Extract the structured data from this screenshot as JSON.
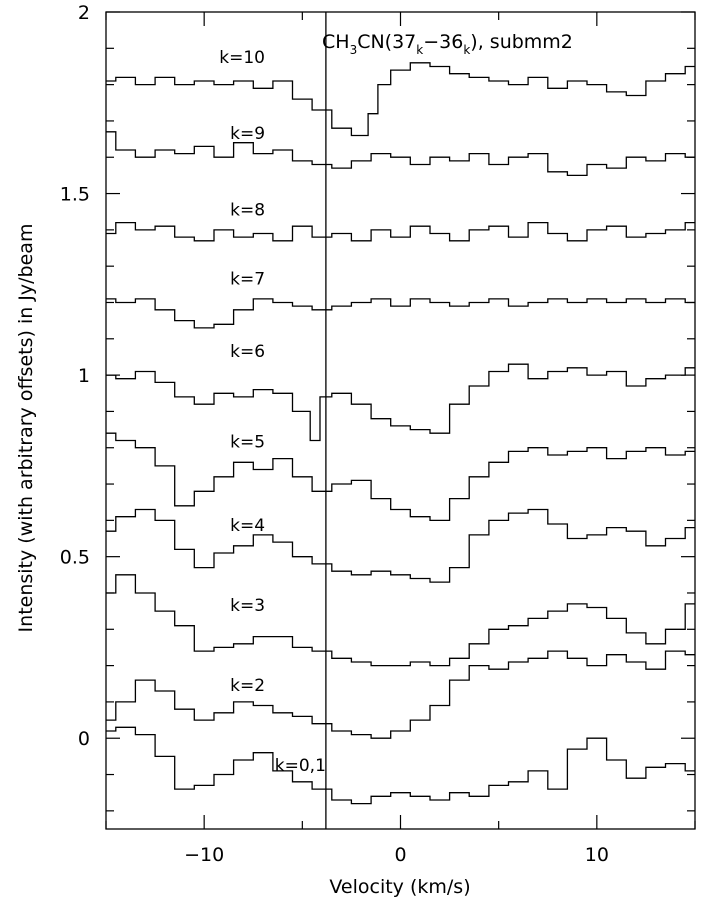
{
  "chart_data": {
    "type": "line",
    "title": "CH3CN(37k−36k), submm2",
    "title_parts": {
      "a": "CH",
      "b": "3",
      "c": "CN(37",
      "d": "k",
      "e": "−36",
      "f": "k",
      "g": "), submm2"
    },
    "xlabel": "Velocity (km/s)",
    "ylabel": "Intensity (with arbitrary offsets) in Jy/beam",
    "xlim": [
      -15,
      15
    ],
    "ylim": [
      -0.25,
      2.0
    ],
    "x_ticks": [
      -10,
      0,
      10
    ],
    "x_tick_labels": [
      "−10",
      "0",
      "10"
    ],
    "y_ticks": [
      0,
      0.5,
      1,
      1.5,
      2
    ],
    "y_tick_labels": [
      "0",
      "0.5",
      "1",
      "1.5",
      "2"
    ],
    "reference_velocity": -3.8,
    "grid": false,
    "series": [
      {
        "name": "k=10",
        "x": [
          -15,
          -14,
          -13,
          -12,
          -11,
          -10,
          -9,
          -8,
          -7,
          -6,
          -5,
          -4,
          -3,
          -2,
          -1.3,
          -1,
          0,
          1,
          2,
          3,
          4,
          5,
          6,
          7,
          8,
          9,
          10,
          11,
          12,
          13,
          14,
          15
        ],
        "y": [
          1.81,
          1.82,
          1.8,
          1.82,
          1.8,
          1.81,
          1.8,
          1.81,
          1.79,
          1.81,
          1.76,
          1.73,
          1.68,
          1.66,
          1.72,
          1.8,
          1.84,
          1.86,
          1.85,
          1.83,
          1.82,
          1.81,
          1.8,
          1.82,
          1.79,
          1.81,
          1.8,
          1.78,
          1.77,
          1.81,
          1.83,
          1.85
        ]
      },
      {
        "name": "k=9",
        "x": [
          -15,
          -14,
          -13,
          -12,
          -11,
          -10,
          -9,
          -8,
          -7,
          -6,
          -5,
          -4,
          -3,
          -2,
          -1,
          0,
          1,
          2,
          3,
          4,
          5,
          6,
          7,
          8,
          9,
          10,
          11,
          12,
          13,
          14,
          15
        ],
        "y": [
          1.67,
          1.62,
          1.6,
          1.62,
          1.61,
          1.63,
          1.6,
          1.64,
          1.61,
          1.62,
          1.59,
          1.58,
          1.57,
          1.59,
          1.61,
          1.6,
          1.58,
          1.6,
          1.59,
          1.61,
          1.58,
          1.6,
          1.61,
          1.56,
          1.55,
          1.58,
          1.57,
          1.6,
          1.59,
          1.61,
          1.6
        ]
      },
      {
        "name": "k=8",
        "x": [
          -15,
          -14,
          -13,
          -12,
          -11,
          -10,
          -9,
          -8,
          -7,
          -6,
          -5,
          -4,
          -3,
          -2,
          -1,
          0,
          1,
          2,
          3,
          4,
          5,
          6,
          7,
          8,
          9,
          10,
          11,
          12,
          13,
          14,
          15
        ],
        "y": [
          1.39,
          1.42,
          1.4,
          1.41,
          1.38,
          1.37,
          1.4,
          1.38,
          1.39,
          1.37,
          1.41,
          1.38,
          1.39,
          1.37,
          1.4,
          1.38,
          1.41,
          1.39,
          1.37,
          1.4,
          1.41,
          1.38,
          1.42,
          1.39,
          1.37,
          1.4,
          1.41,
          1.38,
          1.39,
          1.4,
          1.42
        ]
      },
      {
        "name": "k=7",
        "x": [
          -15,
          -14,
          -13,
          -12,
          -11,
          -10,
          -9,
          -8,
          -7,
          -6,
          -5,
          -4,
          -3,
          -2,
          -1,
          0,
          1,
          2,
          3,
          4,
          5,
          6,
          7,
          8,
          9,
          10,
          11,
          12,
          13,
          14,
          15
        ],
        "y": [
          1.21,
          1.2,
          1.21,
          1.18,
          1.15,
          1.13,
          1.14,
          1.18,
          1.21,
          1.2,
          1.19,
          1.18,
          1.19,
          1.2,
          1.21,
          1.19,
          1.21,
          1.2,
          1.19,
          1.2,
          1.21,
          1.19,
          1.2,
          1.21,
          1.2,
          1.21,
          1.2,
          1.21,
          1.2,
          1.21,
          1.2
        ]
      },
      {
        "name": "k=6",
        "x": [
          -15,
          -14,
          -13,
          -12,
          -11,
          -10,
          -9,
          -8,
          -7,
          -6,
          -5,
          -4.2,
          -4,
          -3,
          -2,
          -1,
          0,
          1,
          2,
          3,
          4,
          5,
          6,
          7,
          8,
          9,
          10,
          11,
          12,
          13,
          14,
          15
        ],
        "y": [
          1.0,
          0.99,
          1.01,
          0.98,
          0.94,
          0.92,
          0.95,
          0.94,
          0.96,
          0.95,
          0.9,
          0.82,
          0.94,
          0.95,
          0.92,
          0.88,
          0.86,
          0.85,
          0.84,
          0.92,
          0.97,
          1.01,
          1.03,
          0.99,
          1.01,
          1.02,
          1.0,
          1.01,
          0.97,
          0.99,
          1.0,
          1.02
        ]
      },
      {
        "name": "k=5",
        "x": [
          -15,
          -14,
          -13,
          -12,
          -11,
          -10,
          -9,
          -8,
          -7,
          -6,
          -5,
          -4,
          -3,
          -2,
          -1,
          0,
          1,
          2,
          3,
          4,
          5,
          6,
          7,
          8,
          9,
          10,
          11,
          12,
          13,
          14,
          15
        ],
        "y": [
          0.84,
          0.82,
          0.8,
          0.75,
          0.64,
          0.68,
          0.72,
          0.76,
          0.74,
          0.77,
          0.72,
          0.68,
          0.7,
          0.71,
          0.66,
          0.63,
          0.61,
          0.6,
          0.66,
          0.72,
          0.76,
          0.79,
          0.8,
          0.78,
          0.79,
          0.8,
          0.77,
          0.79,
          0.8,
          0.78,
          0.79
        ]
      },
      {
        "name": "k=4",
        "x": [
          -15,
          -14,
          -13,
          -12,
          -11,
          -10,
          -9,
          -8,
          -7,
          -6,
          -5,
          -4,
          -3,
          -2,
          -1,
          0,
          1,
          2,
          3,
          4,
          5,
          6,
          7,
          8,
          9,
          10,
          11,
          12,
          13,
          14,
          15
        ],
        "y": [
          0.57,
          0.61,
          0.63,
          0.6,
          0.52,
          0.47,
          0.51,
          0.53,
          0.56,
          0.54,
          0.5,
          0.48,
          0.46,
          0.45,
          0.46,
          0.45,
          0.44,
          0.43,
          0.47,
          0.56,
          0.6,
          0.62,
          0.63,
          0.59,
          0.55,
          0.56,
          0.58,
          0.57,
          0.53,
          0.55,
          0.58
        ]
      },
      {
        "name": "k=3",
        "x": [
          -15,
          -14,
          -13,
          -12,
          -11,
          -10,
          -9,
          -8,
          -7,
          -6,
          -5,
          -4,
          -3,
          -2,
          -1,
          0,
          1,
          2,
          3,
          4,
          5,
          6,
          7,
          8,
          9,
          10,
          11,
          12,
          13,
          14,
          15
        ],
        "y": [
          0.4,
          0.45,
          0.4,
          0.35,
          0.31,
          0.24,
          0.25,
          0.26,
          0.28,
          0.28,
          0.25,
          0.24,
          0.22,
          0.21,
          0.2,
          0.2,
          0.21,
          0.2,
          0.22,
          0.26,
          0.3,
          0.31,
          0.33,
          0.35,
          0.37,
          0.36,
          0.33,
          0.29,
          0.26,
          0.3,
          0.37
        ]
      },
      {
        "name": "k=2",
        "x": [
          -15,
          -14,
          -13,
          -12,
          -11,
          -10,
          -9,
          -8,
          -7,
          -6,
          -5,
          -4,
          -3,
          -2,
          -1,
          0,
          1,
          2,
          3,
          4,
          5,
          6,
          7,
          8,
          9,
          10,
          11,
          12,
          13,
          14,
          15
        ],
        "y": [
          0.05,
          0.1,
          0.16,
          0.13,
          0.08,
          0.05,
          0.07,
          0.1,
          0.09,
          0.07,
          0.06,
          0.04,
          0.02,
          0.01,
          0.0,
          0.02,
          0.05,
          0.09,
          0.16,
          0.2,
          0.19,
          0.21,
          0.22,
          0.24,
          0.22,
          0.2,
          0.23,
          0.21,
          0.19,
          0.24,
          0.23
        ]
      },
      {
        "name": "k=0,1",
        "x": [
          -15,
          -14,
          -13,
          -12,
          -11,
          -10,
          -9,
          -8,
          -7,
          -6,
          -5,
          -4,
          -3,
          -2,
          -1,
          0,
          1,
          2,
          3,
          4,
          5,
          6,
          7,
          8,
          9,
          10,
          11,
          12,
          13,
          14,
          15
        ],
        "y": [
          0.02,
          0.03,
          0.01,
          -0.05,
          -0.14,
          -0.13,
          -0.1,
          -0.06,
          -0.04,
          -0.09,
          -0.12,
          -0.14,
          -0.17,
          -0.18,
          -0.16,
          -0.15,
          -0.16,
          -0.17,
          -0.15,
          -0.16,
          -0.13,
          -0.12,
          -0.09,
          -0.14,
          -0.03,
          0.0,
          -0.06,
          -0.11,
          -0.08,
          -0.07,
          -0.09
        ]
      }
    ],
    "series_labels": [
      {
        "text": "k=10",
        "anchor_v": -6.9,
        "anchor_y": 1.86
      },
      {
        "text": "k=9",
        "anchor_v": -6.9,
        "anchor_y": 1.65
      },
      {
        "text": "k=8",
        "anchor_v": -6.9,
        "anchor_y": 1.44
      },
      {
        "text": "k=7",
        "anchor_v": -6.9,
        "anchor_y": 1.25
      },
      {
        "text": "k=6",
        "anchor_v": -6.9,
        "anchor_y": 1.05
      },
      {
        "text": "k=5",
        "anchor_v": -6.9,
        "anchor_y": 0.8
      },
      {
        "text": "k=4",
        "anchor_v": -6.9,
        "anchor_y": 0.57
      },
      {
        "text": "k=3",
        "anchor_v": -6.9,
        "anchor_y": 0.35
      },
      {
        "text": "k=2",
        "anchor_v": -6.9,
        "anchor_y": 0.13
      },
      {
        "text": "k=0,1",
        "anchor_v": -3.8,
        "anchor_y": -0.09
      }
    ]
  }
}
